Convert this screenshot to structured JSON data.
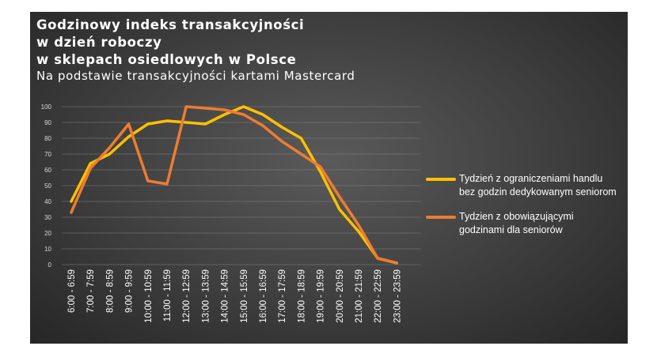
{
  "header": {
    "title_lines": [
      "Godzinowy indeks transakcyjności",
      "w dzień roboczy",
      "w sklepach osiedlowych w Polsce"
    ],
    "subtitle": "Na podstawie transakcyjności kartami Mastercard"
  },
  "chart_data": {
    "type": "line",
    "title": "Godzinowy indeks transakcyjności w dzień roboczy w sklepach osiedlowych w Polsce",
    "subtitle": "Na podstawie transakcyjności kartami Mastercard",
    "categories": [
      "6:00 - 6:59",
      "7:00 - 7:59",
      "8:00 - 8:59",
      "9:00 - 9:59",
      "10:00 - 10:59",
      "11:00 - 11:59",
      "12:00 - 12:59",
      "13:00 - 13:59",
      "14:00 - 14:59",
      "15:00 - 15:59",
      "16:00 - 16:59",
      "17:00 - 17:59",
      "18:00 - 18:59",
      "19:00 - 19:59",
      "20:00 - 20:59",
      "21:00 - 21:59",
      "22:00 - 22:59",
      "23:00 - 23:59"
    ],
    "yticks": [
      0,
      10,
      20,
      30,
      40,
      50,
      60,
      70,
      80,
      90,
      100
    ],
    "ylim": [
      0,
      100
    ],
    "grid": true,
    "legend_position": "right",
    "series": [
      {
        "name": "Tydzień z ograniczeniami handlu bez godzin dedykowanym seniorom",
        "color": "#FFC000",
        "values": [
          40,
          64,
          70,
          81,
          89,
          91,
          90,
          89,
          95,
          100,
          95,
          87,
          80,
          59,
          35,
          21,
          4,
          1
        ]
      },
      {
        "name": "Tydzien z obowiązującymi godzinami dla seniorów",
        "color": "#ED7D31",
        "values": [
          33,
          61,
          74,
          89,
          53,
          51,
          100,
          99,
          98,
          95,
          88,
          78,
          70,
          62,
          43,
          25,
          4,
          1
        ]
      }
    ]
  }
}
